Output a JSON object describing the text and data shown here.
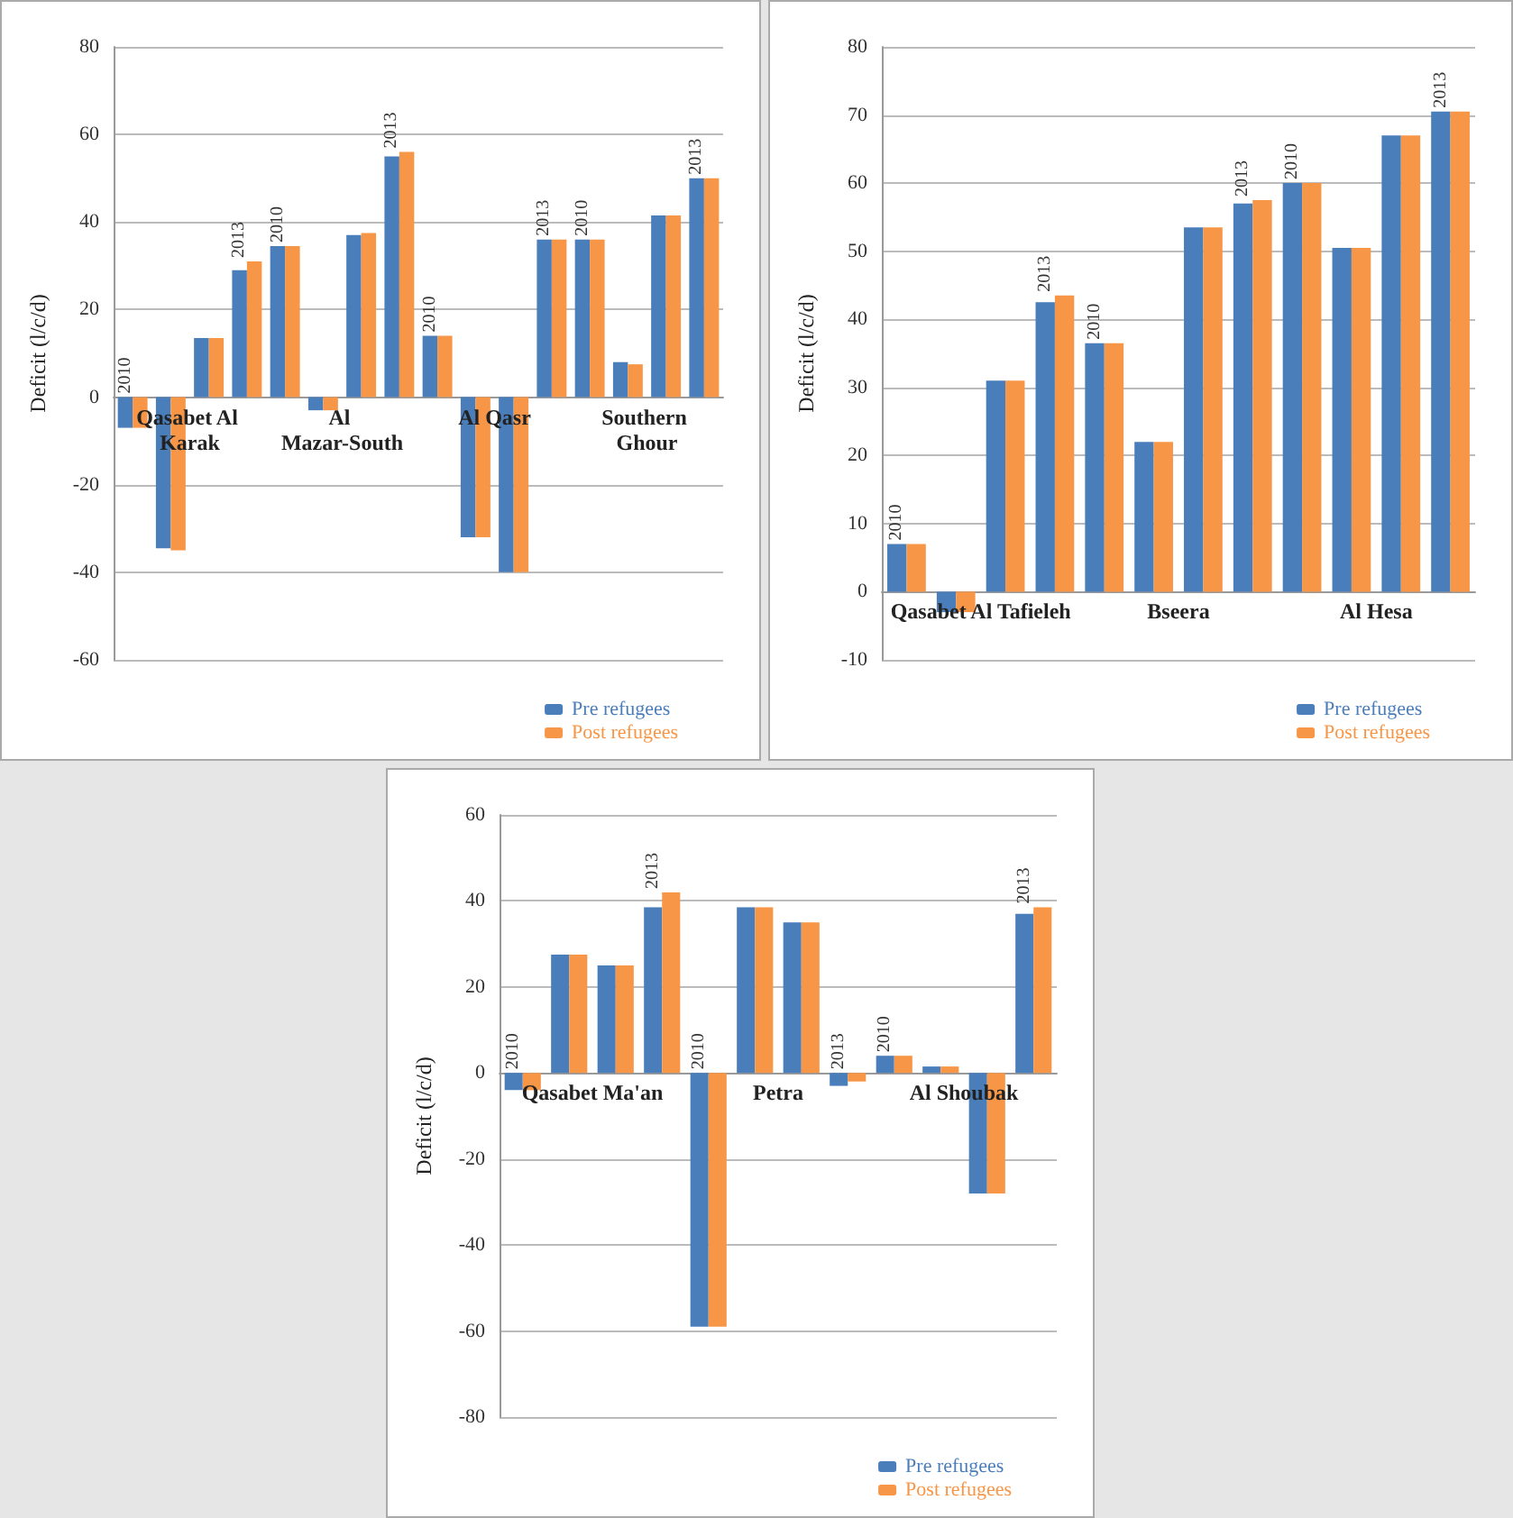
{
  "chart_data": [
    {
      "type": "bar",
      "ylabel": "Deficit (l/c/d)",
      "categories": [
        "2010",
        null,
        null,
        "2013",
        "2010",
        null,
        null,
        "2013",
        "2010",
        null,
        null,
        "2013",
        "2010",
        null,
        null,
        "2013"
      ],
      "annotations": [
        "Qasabet Al Karak",
        "Al Mazar-South",
        "Al Qasr",
        "Southern Ghour"
      ],
      "series": [
        {
          "name": "Pre refugees",
          "color": "#4a7ebb",
          "values": [
            -7,
            -34.5,
            13.5,
            29,
            34.5,
            -3,
            37,
            55,
            14,
            -32,
            -40,
            36,
            36,
            8,
            41.5,
            50
          ]
        },
        {
          "name": "Post refugees",
          "color": "#f79646",
          "values": [
            -7,
            -35,
            13.5,
            31,
            34.5,
            -3,
            37.5,
            56,
            14,
            -32,
            -40,
            36,
            36,
            7.5,
            41.5,
            50
          ]
        }
      ],
      "ylim": [
        -60,
        80
      ],
      "yticks": [
        -60,
        -40,
        -20,
        0,
        20,
        40,
        60,
        80
      ],
      "grid": "y",
      "legend": "bottom right"
    },
    {
      "type": "bar",
      "ylabel": "Deficit (l/c/d)",
      "categories": [
        "2010",
        null,
        null,
        "2013",
        "2010",
        null,
        null,
        "2013",
        "2010",
        null,
        null,
        "2013"
      ],
      "annotations": [
        "Qasabet Al Tafieleh",
        "Bseera",
        "Al Hesa"
      ],
      "series": [
        {
          "name": "Pre refugees",
          "color": "#4a7ebb",
          "values": [
            7,
            -3,
            31,
            42.5,
            36.5,
            22,
            53.5,
            57,
            60,
            50.5,
            67,
            70.5
          ]
        },
        {
          "name": "Post refugees",
          "color": "#f79646",
          "values": [
            7,
            -3,
            31,
            43.5,
            36.5,
            22,
            53.5,
            57.5,
            60,
            50.5,
            67,
            70.5
          ]
        }
      ],
      "ylim": [
        -10,
        80
      ],
      "yticks": [
        -10,
        0,
        10,
        20,
        30,
        40,
        50,
        60,
        70,
        80
      ],
      "grid": "y",
      "legend": "bottom right"
    },
    {
      "type": "bar",
      "ylabel": "Deficit (l/c/d)",
      "categories": [
        "2010",
        null,
        null,
        "2013",
        "2010",
        null,
        null,
        "2013",
        "2010",
        null,
        null,
        "2013"
      ],
      "annotations": [
        "Qasabet Ma'an",
        "Petra",
        "Al Shoubak"
      ],
      "series": [
        {
          "name": "Pre refugees",
          "color": "#4a7ebb",
          "values": [
            -4,
            27.5,
            25,
            38.5,
            -59,
            38.5,
            35,
            -3,
            4,
            1.5,
            -28,
            37
          ]
        },
        {
          "name": "Post refugees",
          "color": "#f79646",
          "values": [
            -4,
            27.5,
            25,
            42,
            -59,
            38.5,
            35,
            -2,
            4,
            1.5,
            -28,
            38.5
          ]
        }
      ],
      "ylim": [
        -80,
        60
      ],
      "yticks": [
        -80,
        -60,
        -40,
        -20,
        0,
        20,
        40,
        60
      ],
      "grid": "y",
      "legend": "bottom right"
    }
  ]
}
